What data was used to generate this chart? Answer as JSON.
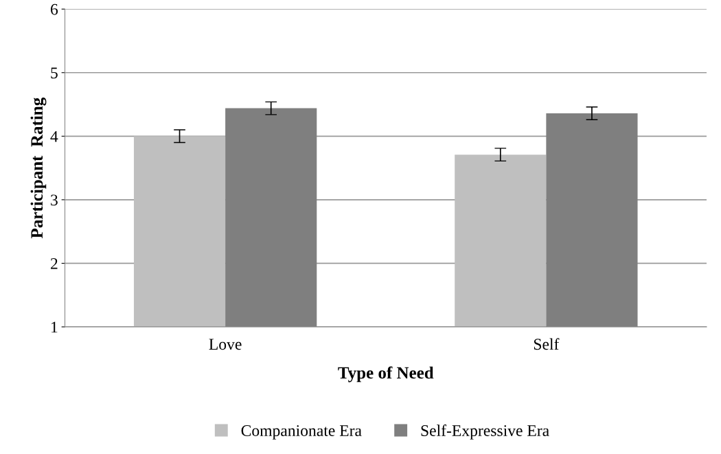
{
  "chart_data": {
    "type": "bar",
    "xlabel": "Type of Need",
    "ylabel": "Participant  Rating",
    "categories": [
      "Love",
      "Self"
    ],
    "series": [
      {
        "name": "Companionate Era",
        "color": "#bfbfbf",
        "values": [
          4.0,
          3.71
        ],
        "errors": [
          0.1,
          0.1
        ]
      },
      {
        "name": "Self-Expressive Era",
        "color": "#7f7f7f",
        "values": [
          4.44,
          4.36
        ],
        "errors": [
          0.1,
          0.1
        ]
      }
    ],
    "ylim": [
      1,
      6
    ],
    "yticks": [
      1,
      2,
      3,
      4,
      5,
      6
    ],
    "grid": "y",
    "legend": "bottom"
  }
}
